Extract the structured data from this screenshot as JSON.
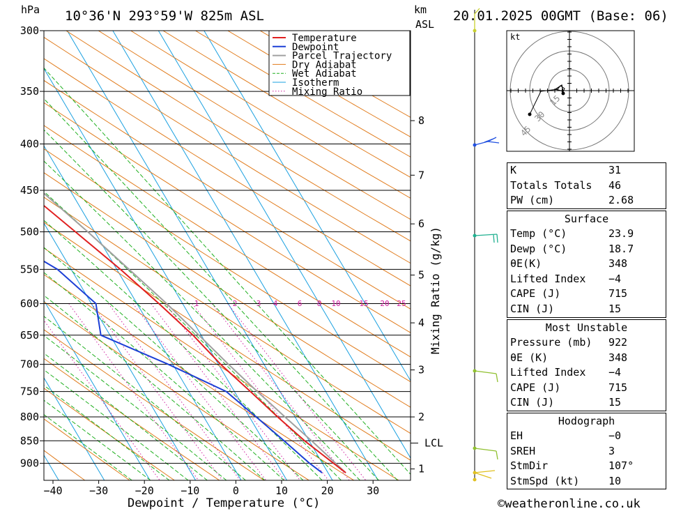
{
  "header": {
    "units_hpa": "hPa",
    "location": "10°36'N 293°59'W 825m ASL",
    "km_label": "km",
    "asl_label": "ASL",
    "datetime": "20.01.2025 00GMT (Base: 06)"
  },
  "footer": {
    "copyright": "©weatheronline.co.uk"
  },
  "colors": {
    "temperature": "#e02020",
    "dewpoint": "#1c3fd6",
    "parcel": "#a0a0a0",
    "dry_adiabat": "#e07a1a",
    "wet_adiabat": "#20b020",
    "isotherm": "#1aa0e0",
    "mixing_ratio": "#d020a0"
  },
  "chart_data": {
    "type": "line",
    "xlabel": "Dewpoint / Temperature (°C)",
    "ylabel": "Mixing Ratio (g/kg)",
    "x_ticks": [
      "−40",
      "−30",
      "−20",
      "−10",
      "0",
      "10",
      "20",
      "30"
    ],
    "pressure_levels": [
      300,
      350,
      400,
      450,
      500,
      550,
      600,
      650,
      700,
      750,
      800,
      850,
      900
    ],
    "km_ticks": [
      {
        "label": "1",
        "p": 913
      },
      {
        "label": "2",
        "p": 800
      },
      {
        "label": "3",
        "p": 710
      },
      {
        "label": "4",
        "p": 630
      },
      {
        "label": "5",
        "p": 558
      },
      {
        "label": "6",
        "p": 490
      },
      {
        "label": "7",
        "p": 433
      },
      {
        "label": "8",
        "p": 377
      }
    ],
    "lcl": {
      "label": "LCL",
      "p": 855
    },
    "mixing_ratio_labels": [
      "1",
      "2",
      "3",
      "4",
      "6",
      "8",
      "10",
      "15",
      "20",
      "25"
    ],
    "legend": [
      "Temperature",
      "Dewpoint",
      "Parcel Trajectory",
      "Dry Adiabat",
      "Wet Adiabat",
      "Isotherm",
      "Mixing Ratio"
    ],
    "series": [
      {
        "name": "Temperature",
        "points": [
          [
            922,
            23.9
          ],
          [
            850,
            19
          ],
          [
            800,
            16.2
          ],
          [
            750,
            13.5
          ],
          [
            700,
            10.5
          ],
          [
            650,
            8.2
          ],
          [
            600,
            4.8
          ],
          [
            550,
            0.8
          ],
          [
            500,
            -4.2
          ],
          [
            450,
            -9.8
          ],
          [
            400,
            -16
          ],
          [
            370,
            -21
          ],
          [
            350,
            -24
          ]
        ]
      },
      {
        "name": "Dewpoint",
        "points": [
          [
            922,
            18.7
          ],
          [
            900,
            17.2
          ],
          [
            850,
            14.5
          ],
          [
            800,
            11.5
          ],
          [
            750,
            8.2
          ],
          [
            700,
            -1
          ],
          [
            650,
            -12
          ],
          [
            600,
            -9
          ],
          [
            550,
            -13
          ],
          [
            500,
            -22
          ],
          [
            450,
            -31
          ],
          [
            400,
            -43
          ],
          [
            350,
            -60
          ],
          [
            300,
            -68
          ]
        ]
      },
      {
        "name": "Parcel Trajectory",
        "points": [
          [
            922,
            23.9
          ],
          [
            855,
            20.8
          ],
          [
            800,
            17.8
          ],
          [
            750,
            15
          ],
          [
            700,
            12.2
          ],
          [
            650,
            9.5
          ],
          [
            600,
            6.5
          ],
          [
            550,
            2.7
          ],
          [
            500,
            -1.5
          ],
          [
            450,
            -6.5
          ],
          [
            400,
            -12
          ],
          [
            350,
            -20.5
          ]
        ]
      }
    ]
  },
  "hodograph": {
    "unit_label": "kt",
    "rings": [
      "15",
      "30",
      "45"
    ]
  },
  "indices": [
    {
      "label": "K",
      "value": "31"
    },
    {
      "label": "Totals Totals",
      "value": "46"
    },
    {
      "label": "PW (cm)",
      "value": "2.68"
    }
  ],
  "surface": {
    "title": "Surface",
    "rows": [
      {
        "label": "Temp (°C)",
        "value": "23.9"
      },
      {
        "label": "Dewp (°C)",
        "value": "18.7"
      },
      {
        "label": "θE(K)",
        "value": "348"
      },
      {
        "label": "Lifted Index",
        "value": "−4"
      },
      {
        "label": "CAPE (J)",
        "value": "715"
      },
      {
        "label": "CIN (J)",
        "value": "15"
      }
    ]
  },
  "most_unstable": {
    "title": "Most Unstable",
    "rows": [
      {
        "label": "Pressure (mb)",
        "value": "922"
      },
      {
        "label": "θE (K)",
        "value": "348"
      },
      {
        "label": "Lifted Index",
        "value": "−4"
      },
      {
        "label": "CAPE (J)",
        "value": "715"
      },
      {
        "label": "CIN (J)",
        "value": "15"
      }
    ]
  },
  "hodograph_stats": {
    "title": "Hodograph",
    "rows": [
      {
        "label": "EH",
        "value": "−0"
      },
      {
        "label": "SREH",
        "value": "3"
      },
      {
        "label": "StmDir",
        "value": "107°"
      },
      {
        "label": "StmSpd (kt)",
        "value": "10"
      }
    ]
  }
}
